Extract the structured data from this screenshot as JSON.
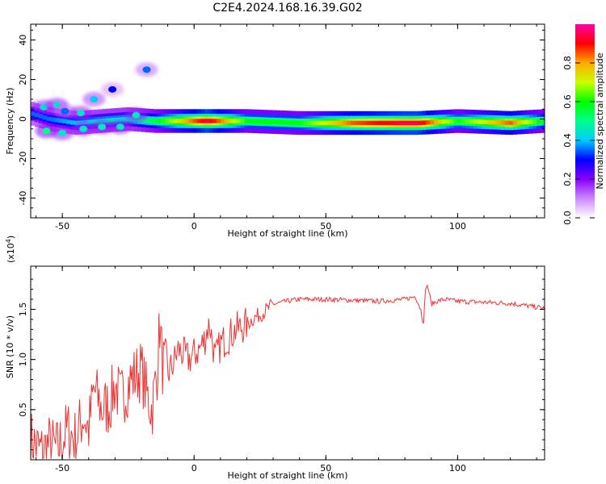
{
  "title": "C2E4.2024.168.16.39.G02",
  "chart_data": [
    {
      "type": "heatmap",
      "xlabel": "Height of straight line (km)",
      "ylabel": "Frequency (Hz)",
      "xlim": [
        -62,
        133
      ],
      "ylim": [
        -50,
        48
      ],
      "xticks": [
        -50,
        0,
        50,
        100
      ],
      "yticks": [
        40,
        20,
        0,
        -20,
        -40
      ],
      "colorbar": {
        "label": "Normalized spectral amplitude",
        "range": [
          0,
          1
        ],
        "ticks": [
          "0.0",
          "0.2",
          "0.4",
          "0.6",
          "0.8"
        ],
        "colors": [
          "#ffffff",
          "#cc88ff",
          "#8800ff",
          "#0000ff",
          "#00ccff",
          "#00ff88",
          "#00ff00",
          "#ccff00",
          "#ffaa00",
          "#ff0000",
          "#ff00aa"
        ]
      },
      "ridge": {
        "x": [
          -62,
          -55,
          -45,
          -35,
          -25,
          -15,
          -5,
          5,
          20,
          40,
          60,
          80,
          85,
          100,
          120,
          133
        ],
        "freq": [
          3,
          0,
          -2,
          -1,
          0,
          -1,
          -1,
          -1,
          -1,
          -2,
          -2,
          -2,
          -2,
          -1,
          -2,
          -1
        ],
        "amplitude": [
          0.35,
          0.35,
          0.4,
          0.45,
          0.45,
          0.55,
          0.75,
          0.95,
          0.6,
          0.6,
          0.85,
          0.95,
          0.95,
          0.6,
          0.85,
          0.55
        ]
      },
      "blobs": [
        {
          "x": -57,
          "y": 6,
          "a": 0.3
        },
        {
          "x": -52,
          "y": 7,
          "a": 0.3
        },
        {
          "x": -49,
          "y": 4,
          "a": 0.2
        },
        {
          "x": -43,
          "y": 3,
          "a": 0.3
        },
        {
          "x": -38,
          "y": 10,
          "a": 0.25
        },
        {
          "x": -31,
          "y": 15,
          "a": 0.15
        },
        {
          "x": -18,
          "y": 25,
          "a": 0.2
        },
        {
          "x": -56,
          "y": -6,
          "a": 0.35
        },
        {
          "x": -50,
          "y": -7,
          "a": 0.3
        },
        {
          "x": -42,
          "y": -5,
          "a": 0.3
        },
        {
          "x": -35,
          "y": -4,
          "a": 0.3
        },
        {
          "x": -28,
          "y": -4,
          "a": 0.3
        },
        {
          "x": -22,
          "y": 2,
          "a": 0.3
        }
      ]
    },
    {
      "type": "line",
      "xlabel": "Height of straight line (km)",
      "ylabel": "SNR (10 * v/v)",
      "multiplier_label": "(x10",
      "multiplier_exp": "4",
      "xlim": [
        -62,
        133
      ],
      "ylim": [
        0,
        1.93
      ],
      "xticks": [
        -50,
        0,
        50,
        100
      ],
      "yticks": [
        "0.5",
        "1.0",
        "1.5"
      ],
      "ytick_values": [
        0.5,
        1.0,
        1.5
      ],
      "series": [
        {
          "color": "#ee3333",
          "x": [
            -62,
            -58,
            -55,
            -52,
            -48,
            -45,
            -42,
            -40,
            -38,
            -35,
            -32,
            -30,
            -28,
            -26,
            -24,
            -22,
            -20,
            -18,
            -16,
            -14,
            -13,
            -12,
            -10,
            -8,
            -6,
            -4,
            -2,
            0,
            2,
            4,
            5,
            6,
            8,
            10,
            12,
            14,
            16,
            18,
            20,
            22,
            25,
            28,
            30,
            35,
            40,
            50,
            60,
            70,
            80,
            84,
            86,
            87,
            88,
            89,
            90,
            92,
            95,
            100,
            110,
            120,
            133
          ],
          "y": [
            0.2,
            0.08,
            0.15,
            0.1,
            0.3,
            0.2,
            0.45,
            0.3,
            0.7,
            0.5,
            0.55,
            0.75,
            0.6,
            0.7,
            0.8,
            0.85,
            0.9,
            0.65,
            0.5,
            0.9,
            1.35,
            0.95,
            0.85,
            0.95,
            1.1,
            1.05,
            1.0,
            1.05,
            1.1,
            1.2,
            1.3,
            1.35,
            1.0,
            1.15,
            1.2,
            1.25,
            1.3,
            1.32,
            1.35,
            1.4,
            1.45,
            1.5,
            1.55,
            1.58,
            1.6,
            1.6,
            1.59,
            1.58,
            1.6,
            1.63,
            1.5,
            1.35,
            1.75,
            1.7,
            1.55,
            1.58,
            1.6,
            1.58,
            1.57,
            1.56,
            1.51
          ]
        }
      ]
    }
  ]
}
